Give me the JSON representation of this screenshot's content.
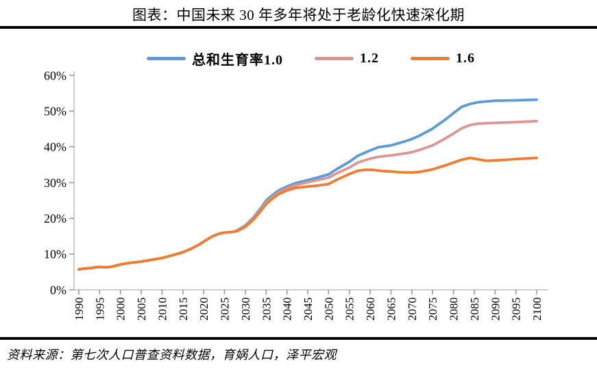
{
  "page": {
    "title": "图表：中国未来 30 年多年将处于老龄化快速深化期",
    "source": "资料来源：第七次人口普查资料数据，育娲人口，泽平宏观"
  },
  "chart_data": {
    "type": "line",
    "title": "图表：中国未来 30 年多年将处于老龄化快速深化期",
    "subtitle": "",
    "xlabel": "",
    "ylabel": "",
    "grid": false,
    "legend_position": "top",
    "x_axis": {
      "range": [
        1990,
        2100
      ],
      "tick_step": 5,
      "ticks": [
        1990,
        1995,
        2000,
        2005,
        2010,
        2015,
        2020,
        2025,
        2030,
        2035,
        2040,
        2045,
        2050,
        2055,
        2060,
        2065,
        2070,
        2075,
        2080,
        2085,
        2090,
        2095,
        2100
      ]
    },
    "y_axis": {
      "range": [
        0,
        60
      ],
      "unit": "%",
      "ticks": [
        0,
        10,
        20,
        30,
        40,
        50,
        60
      ],
      "tick_labels": [
        "0%",
        "10%",
        "20%",
        "30%",
        "40%",
        "50%",
        "60%"
      ]
    },
    "axis_color": "#bfbfbf",
    "tick_color": "#999999",
    "series": [
      {
        "name": "总和生育率1.0",
        "color": "#5b9bd5",
        "points": [
          [
            1990,
            5.7
          ],
          [
            1991,
            5.9
          ],
          [
            1993,
            6.1
          ],
          [
            1994,
            6.3
          ],
          [
            1995,
            6.4
          ],
          [
            1996,
            6.3
          ],
          [
            1997,
            6.3
          ],
          [
            1998,
            6.5
          ],
          [
            2000,
            7.1
          ],
          [
            2002,
            7.5
          ],
          [
            2005,
            7.9
          ],
          [
            2007,
            8.3
          ],
          [
            2010,
            8.9
          ],
          [
            2012,
            9.5
          ],
          [
            2015,
            10.5
          ],
          [
            2017,
            11.5
          ],
          [
            2019,
            12.7
          ],
          [
            2020,
            13.5
          ],
          [
            2021,
            14.2
          ],
          [
            2022,
            14.9
          ],
          [
            2023,
            15.4
          ],
          [
            2024,
            15.8
          ],
          [
            2025,
            16.0
          ],
          [
            2026,
            16.1
          ],
          [
            2027,
            16.2
          ],
          [
            2028,
            16.6
          ],
          [
            2030,
            18.0
          ],
          [
            2032,
            20.3
          ],
          [
            2034,
            23.3
          ],
          [
            2035,
            25.0
          ],
          [
            2036,
            26.0
          ],
          [
            2038,
            27.8
          ],
          [
            2040,
            28.9
          ],
          [
            2042,
            29.8
          ],
          [
            2045,
            30.7
          ],
          [
            2047,
            31.3
          ],
          [
            2050,
            32.3
          ],
          [
            2052,
            33.8
          ],
          [
            2055,
            35.8
          ],
          [
            2057,
            37.5
          ],
          [
            2060,
            39.0
          ],
          [
            2062,
            39.9
          ],
          [
            2065,
            40.4
          ],
          [
            2068,
            41.4
          ],
          [
            2070,
            42.2
          ],
          [
            2072,
            43.2
          ],
          [
            2075,
            45.1
          ],
          [
            2078,
            47.6
          ],
          [
            2080,
            49.4
          ],
          [
            2082,
            51.2
          ],
          [
            2084,
            52.0
          ],
          [
            2086,
            52.5
          ],
          [
            2090,
            52.9
          ],
          [
            2095,
            53.0
          ],
          [
            2100,
            53.2
          ]
        ]
      },
      {
        "name": "1.2",
        "color": "#d99694",
        "points": [
          [
            1990,
            5.7
          ],
          [
            1991,
            5.9
          ],
          [
            1993,
            6.1
          ],
          [
            1994,
            6.3
          ],
          [
            1995,
            6.4
          ],
          [
            1996,
            6.3
          ],
          [
            1997,
            6.3
          ],
          [
            1998,
            6.5
          ],
          [
            2000,
            7.1
          ],
          [
            2002,
            7.5
          ],
          [
            2005,
            7.9
          ],
          [
            2007,
            8.3
          ],
          [
            2010,
            8.9
          ],
          [
            2012,
            9.5
          ],
          [
            2015,
            10.5
          ],
          [
            2017,
            11.5
          ],
          [
            2019,
            12.7
          ],
          [
            2020,
            13.5
          ],
          [
            2021,
            14.2
          ],
          [
            2022,
            14.9
          ],
          [
            2023,
            15.4
          ],
          [
            2024,
            15.8
          ],
          [
            2025,
            16.0
          ],
          [
            2026,
            16.1
          ],
          [
            2027,
            16.2
          ],
          [
            2028,
            16.5
          ],
          [
            2030,
            17.8
          ],
          [
            2032,
            20.0
          ],
          [
            2034,
            22.9
          ],
          [
            2035,
            24.5
          ],
          [
            2036,
            25.5
          ],
          [
            2038,
            27.3
          ],
          [
            2040,
            28.4
          ],
          [
            2042,
            29.3
          ],
          [
            2045,
            30.1
          ],
          [
            2047,
            30.6
          ],
          [
            2050,
            31.4
          ],
          [
            2052,
            32.6
          ],
          [
            2055,
            34.2
          ],
          [
            2057,
            35.6
          ],
          [
            2060,
            36.7
          ],
          [
            2062,
            37.2
          ],
          [
            2065,
            37.6
          ],
          [
            2068,
            38.1
          ],
          [
            2070,
            38.5
          ],
          [
            2072,
            39.2
          ],
          [
            2075,
            40.4
          ],
          [
            2078,
            42.3
          ],
          [
            2080,
            43.7
          ],
          [
            2082,
            45.2
          ],
          [
            2084,
            46.1
          ],
          [
            2086,
            46.5
          ],
          [
            2090,
            46.7
          ],
          [
            2095,
            46.9
          ],
          [
            2100,
            47.2
          ]
        ]
      },
      {
        "name": "1.6",
        "color": "#ed7d31",
        "points": [
          [
            1990,
            5.7
          ],
          [
            1991,
            5.9
          ],
          [
            1993,
            6.1
          ],
          [
            1994,
            6.3
          ],
          [
            1995,
            6.4
          ],
          [
            1996,
            6.3
          ],
          [
            1997,
            6.3
          ],
          [
            1998,
            6.5
          ],
          [
            2000,
            7.1
          ],
          [
            2002,
            7.5
          ],
          [
            2005,
            7.9
          ],
          [
            2007,
            8.3
          ],
          [
            2010,
            8.9
          ],
          [
            2012,
            9.5
          ],
          [
            2015,
            10.5
          ],
          [
            2017,
            11.5
          ],
          [
            2019,
            12.7
          ],
          [
            2020,
            13.5
          ],
          [
            2021,
            14.2
          ],
          [
            2022,
            14.9
          ],
          [
            2023,
            15.4
          ],
          [
            2024,
            15.8
          ],
          [
            2025,
            16.0
          ],
          [
            2026,
            16.1
          ],
          [
            2027,
            16.2
          ],
          [
            2028,
            16.4
          ],
          [
            2030,
            17.6
          ],
          [
            2032,
            19.7
          ],
          [
            2034,
            22.5
          ],
          [
            2035,
            24.0
          ],
          [
            2036,
            25.0
          ],
          [
            2038,
            26.8
          ],
          [
            2040,
            27.8
          ],
          [
            2042,
            28.5
          ],
          [
            2045,
            28.9
          ],
          [
            2047,
            29.1
          ],
          [
            2050,
            29.6
          ],
          [
            2052,
            30.8
          ],
          [
            2055,
            32.4
          ],
          [
            2057,
            33.3
          ],
          [
            2059,
            33.6
          ],
          [
            2061,
            33.5
          ],
          [
            2063,
            33.2
          ],
          [
            2065,
            33.1
          ],
          [
            2067,
            32.9
          ],
          [
            2070,
            32.8
          ],
          [
            2072,
            33.0
          ],
          [
            2075,
            33.7
          ],
          [
            2078,
            34.8
          ],
          [
            2080,
            35.6
          ],
          [
            2082,
            36.4
          ],
          [
            2084,
            36.9
          ],
          [
            2086,
            36.5
          ],
          [
            2088,
            36.1
          ],
          [
            2090,
            36.2
          ],
          [
            2093,
            36.4
          ],
          [
            2095,
            36.6
          ],
          [
            2100,
            36.9
          ]
        ]
      }
    ]
  }
}
